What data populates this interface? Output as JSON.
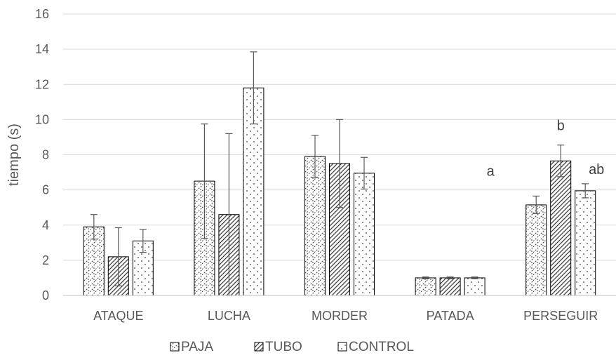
{
  "chart_data": {
    "type": "bar",
    "title": "",
    "xlabel": "",
    "ylabel": "tiempo (s)",
    "ylim": [
      0,
      16
    ],
    "yticks": [
      0,
      2,
      4,
      6,
      8,
      10,
      12,
      14,
      16
    ],
    "grid": true,
    "legend_position": "bottom",
    "categories": [
      "ATAQUE",
      "LUCHA",
      "MORDER",
      "PATADA",
      "PERSEGUIR"
    ],
    "series": [
      {
        "name": "PAJA",
        "pattern": "dots-diagonal",
        "values": [
          3.9,
          6.5,
          7.9,
          1.0,
          5.15
        ],
        "errors": [
          0.7,
          3.25,
          1.2,
          0.05,
          0.5
        ]
      },
      {
        "name": "TUBO",
        "pattern": "diagonal-hatch",
        "values": [
          2.2,
          4.6,
          7.5,
          1.0,
          7.65
        ],
        "errors": [
          1.65,
          4.6,
          2.5,
          0.05,
          0.9
        ]
      },
      {
        "name": "CONTROL",
        "pattern": "dots",
        "values": [
          3.1,
          11.8,
          6.95,
          1.0,
          5.95
        ],
        "errors": [
          0.65,
          2.05,
          0.9,
          0.05,
          0.4
        ]
      }
    ],
    "annotations": [
      {
        "text": "a",
        "category": "PERSEGUIR",
        "series": "PAJA"
      },
      {
        "text": "b",
        "category": "PERSEGUIR",
        "series": "TUBO"
      },
      {
        "text": "ab",
        "category": "PERSEGUIR",
        "series": "CONTROL"
      }
    ]
  }
}
